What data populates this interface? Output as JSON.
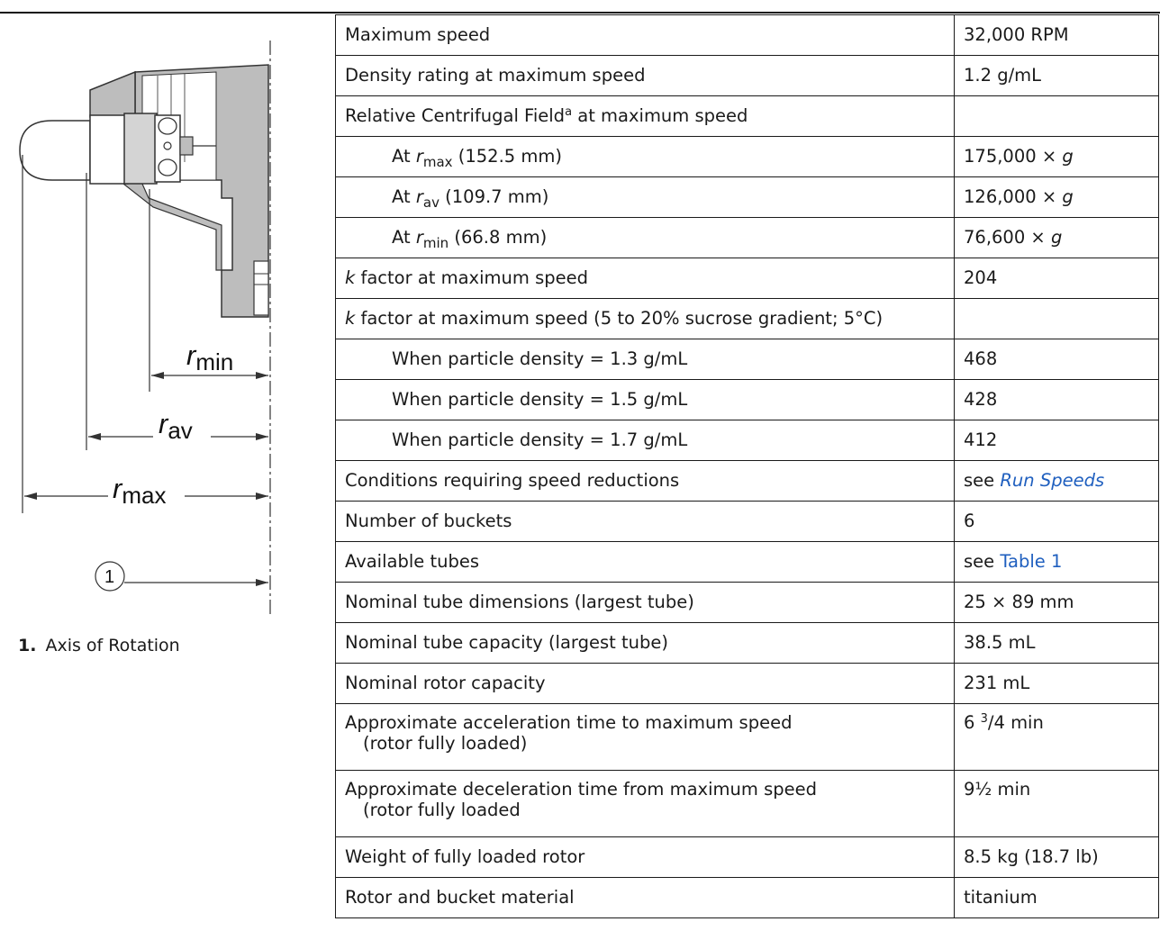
{
  "diagram": {
    "r_min_label": "min",
    "r_av_label": "av",
    "r_max_label": "max",
    "r_symbol": "r",
    "callout_number": "1"
  },
  "caption": {
    "number": "1.",
    "text": "Axis of Rotation"
  },
  "specs": {
    "max_speed": {
      "label": "Maximum speed",
      "value": "32,000 RPM"
    },
    "density": {
      "label": "Density rating at maximum speed",
      "value": "1.2 g/mL"
    },
    "rcf": {
      "label_pre": "Relative Centrifugal Field",
      "label_sup": "a",
      "label_post": " at maximum speed",
      "value": ""
    },
    "rcf_rmax": {
      "pre": "At ",
      "sym": "r",
      "sub": "max",
      "post": " (152.5 mm)",
      "value_num": "175,000 × ",
      "value_unit": "g"
    },
    "rcf_rav": {
      "pre": "At ",
      "sym": "r",
      "sub": "av",
      "post": " (109.7 mm)",
      "value_num": "126,000 × ",
      "value_unit": "g"
    },
    "rcf_rmin": {
      "pre": "At ",
      "sym": "r",
      "sub": "min",
      "post": " (66.8 mm)",
      "value_num": "76,600 × ",
      "value_unit": "g"
    },
    "kfactor": {
      "sym": "k",
      "label": " factor at maximum speed",
      "value": "204"
    },
    "kfactor_grad": {
      "sym": "k",
      "label": " factor at maximum speed (5 to 20% sucrose gradient; 5°C)",
      "value": ""
    },
    "density_13": {
      "label": "When particle density = 1.3 g/mL",
      "value": "468"
    },
    "density_15": {
      "label": "When particle density = 1.5 g/mL",
      "value": "428"
    },
    "density_17": {
      "label": "When particle density = 1.7 g/mL",
      "value": "412"
    },
    "speed_reductions": {
      "label": "Conditions requiring speed reductions",
      "value_pre": "see ",
      "value_link": "Run Speeds"
    },
    "buckets": {
      "label": "Number of buckets",
      "value": "6"
    },
    "tubes": {
      "label": "Available tubes",
      "value_pre": "see ",
      "value_link": "Table 1"
    },
    "tube_dims": {
      "label": "Nominal tube dimensions (largest tube)",
      "value": "25 × 89 mm"
    },
    "tube_cap": {
      "label": "Nominal tube capacity (largest tube)",
      "value": "38.5 mL"
    },
    "rotor_cap": {
      "label": "Nominal rotor capacity",
      "value": "231 mL"
    },
    "accel": {
      "label_line1": "Approximate acceleration time to maximum speed",
      "label_line2": "(rotor fully loaded)",
      "value_pre": "6 ",
      "value_sup": "3",
      "value_post": "/4 min"
    },
    "decel": {
      "label_line1": "Approximate deceleration time from maximum speed",
      "label_line2": "(rotor fully loaded",
      "value": "9½ min"
    },
    "weight": {
      "label": "Weight of fully loaded rotor",
      "value": "8.5 kg (18.7 lb)"
    },
    "material": {
      "label": "Rotor and bucket material",
      "value": "titanium"
    }
  }
}
